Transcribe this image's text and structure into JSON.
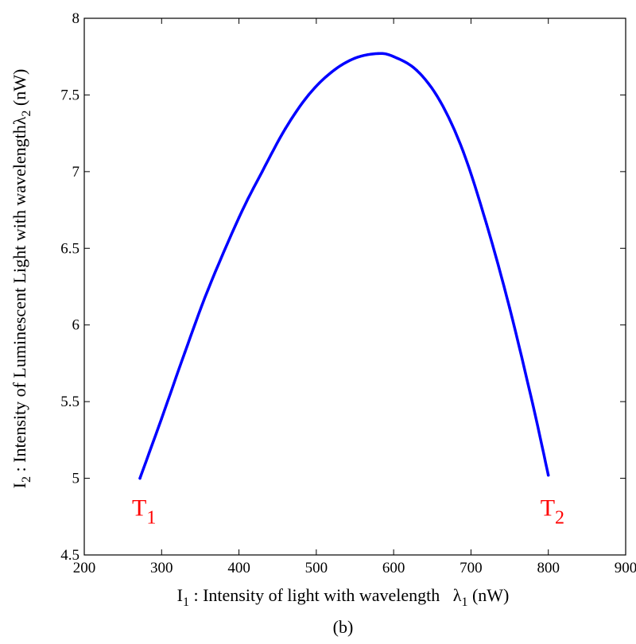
{
  "chart_data": {
    "type": "line",
    "title": "",
    "caption": "(b)",
    "xlabel": {
      "main": "I",
      "main_sub": "1",
      "text": " : Intensity of light with wavelength   ",
      "symbol": "λ",
      "symbol_sub": "1",
      "unit": " (nW)"
    },
    "ylabel": {
      "main": "I",
      "main_sub": "2",
      "text": " : Intensity of Luminescent Light with wavelength",
      "symbol": "λ",
      "symbol_sub": "2",
      "unit": " (nW)"
    },
    "xlim": [
      200,
      900
    ],
    "ylim": [
      4.5,
      8
    ],
    "xticks": [
      200,
      300,
      400,
      500,
      600,
      700,
      800,
      900
    ],
    "yticks": [
      4.5,
      5,
      5.5,
      6,
      6.5,
      7,
      7.5,
      8
    ],
    "xtick_labels": [
      "200",
      "300",
      "400",
      "500",
      "600",
      "700",
      "800",
      "900"
    ],
    "ytick_labels": [
      "4.5",
      "5",
      "5.5",
      "6",
      "6.5",
      "7",
      "7.5",
      "8"
    ],
    "grid": false,
    "series": [
      {
        "color": "#0000ff",
        "x": [
          272,
          300,
          330,
          360,
          400,
          430,
          460,
          490,
          520,
          550,
          580,
          600,
          630,
          660,
          690,
          720,
          750,
          780,
          800
        ],
        "y": [
          5.0,
          5.39,
          5.82,
          6.23,
          6.7,
          7.0,
          7.28,
          7.5,
          7.65,
          7.74,
          7.77,
          7.75,
          7.66,
          7.46,
          7.13,
          6.66,
          6.11,
          5.48,
          5.02
        ]
      }
    ],
    "annotations": [
      {
        "name": "t1",
        "text": "T",
        "sub": "1",
        "color": "#ff0000",
        "x": 272,
        "y": 4.85
      },
      {
        "name": "t2",
        "text": "T",
        "sub": "2",
        "color": "#ff0000",
        "x": 800,
        "y": 4.85
      }
    ]
  }
}
